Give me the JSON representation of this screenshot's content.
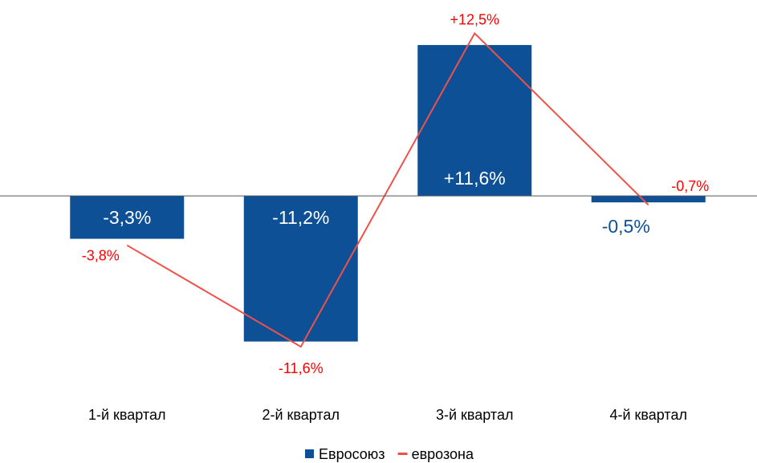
{
  "chart_data": {
    "type": "bar",
    "categories": [
      "1-й квартал",
      "2-й квартал",
      "3-й квартал",
      "4-й квартал"
    ],
    "series": [
      {
        "name": "Евросоюз",
        "type": "bar",
        "color": "#0d5096",
        "values": [
          -3.3,
          -11.2,
          11.6,
          -0.5
        ],
        "value_labels": [
          "-3,3%",
          "-11,2%",
          "+11,6%",
          "-0,5%"
        ]
      },
      {
        "name": "еврозона",
        "type": "line",
        "color": "#f0504a",
        "values": [
          -3.8,
          -11.6,
          12.5,
          -0.7
        ],
        "value_labels": [
          "-3,8%",
          "-11,6%",
          "+12,5%",
          "-0,7%"
        ]
      }
    ],
    "ylim": [
      -14,
      15
    ],
    "grid": false,
    "legend": "bottom"
  }
}
